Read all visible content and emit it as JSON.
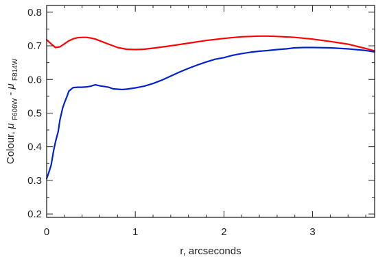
{
  "chart_data": {
    "type": "line",
    "xlabel": "r, arcseconds",
    "ylabel": {
      "prefix": "Colour, ",
      "mu1": "μ",
      "sub1": "F606W",
      "mid": " - ",
      "mu2": "μ",
      "sub2": "F814W"
    },
    "xlim": [
      0,
      3.7
    ],
    "ylim": [
      0.19,
      0.82
    ],
    "x_ticks": [
      0,
      1,
      2,
      3
    ],
    "x_tick_labels": [
      "0",
      "1",
      "2",
      "3"
    ],
    "y_ticks": [
      0.2,
      0.3,
      0.4,
      0.5,
      0.6,
      0.7,
      0.8
    ],
    "y_tick_labels": [
      "0.2",
      "0.3",
      "0.4",
      "0.5",
      "0.6",
      "0.7",
      "0.8"
    ],
    "grid": false,
    "legend": "none",
    "series": [
      {
        "color": "#ff0000",
        "x": [
          0,
          0.05,
          0.1,
          0.15,
          0.2,
          0.25,
          0.3,
          0.35,
          0.4,
          0.45,
          0.5,
          0.55,
          0.6,
          0.7,
          0.8,
          0.9,
          1.0,
          1.1,
          1.2,
          1.4,
          1.6,
          1.8,
          2.0,
          2.2,
          2.4,
          2.5,
          2.6,
          2.8,
          3.0,
          3.2,
          3.4,
          3.6,
          3.7
        ],
        "y": [
          0.718,
          0.706,
          0.695,
          0.697,
          0.706,
          0.715,
          0.721,
          0.724,
          0.725,
          0.725,
          0.723,
          0.72,
          0.715,
          0.705,
          0.695,
          0.69,
          0.689,
          0.69,
          0.693,
          0.7,
          0.708,
          0.716,
          0.722,
          0.727,
          0.729,
          0.729,
          0.728,
          0.725,
          0.72,
          0.713,
          0.705,
          0.692,
          0.685
        ]
      },
      {
        "color": "#0022cc",
        "x": [
          0,
          0.02,
          0.05,
          0.08,
          0.1,
          0.13,
          0.15,
          0.18,
          0.2,
          0.23,
          0.25,
          0.28,
          0.3,
          0.35,
          0.4,
          0.45,
          0.5,
          0.52,
          0.55,
          0.6,
          0.65,
          0.7,
          0.75,
          0.8,
          0.85,
          0.9,
          0.95,
          1.0,
          1.1,
          1.2,
          1.3,
          1.4,
          1.5,
          1.6,
          1.7,
          1.8,
          1.9,
          2.0,
          2.1,
          2.2,
          2.3,
          2.4,
          2.5,
          2.6,
          2.7,
          2.8,
          2.9,
          3.0,
          3.2,
          3.4,
          3.6,
          3.7
        ],
        "y": [
          0.305,
          0.32,
          0.345,
          0.39,
          0.415,
          0.445,
          0.48,
          0.515,
          0.53,
          0.55,
          0.565,
          0.572,
          0.576,
          0.577,
          0.577,
          0.578,
          0.58,
          0.582,
          0.584,
          0.581,
          0.579,
          0.577,
          0.572,
          0.571,
          0.57,
          0.571,
          0.573,
          0.575,
          0.58,
          0.588,
          0.598,
          0.61,
          0.622,
          0.633,
          0.643,
          0.652,
          0.66,
          0.665,
          0.672,
          0.677,
          0.681,
          0.684,
          0.686,
          0.689,
          0.691,
          0.694,
          0.695,
          0.695,
          0.694,
          0.691,
          0.686,
          0.682
        ]
      }
    ]
  }
}
